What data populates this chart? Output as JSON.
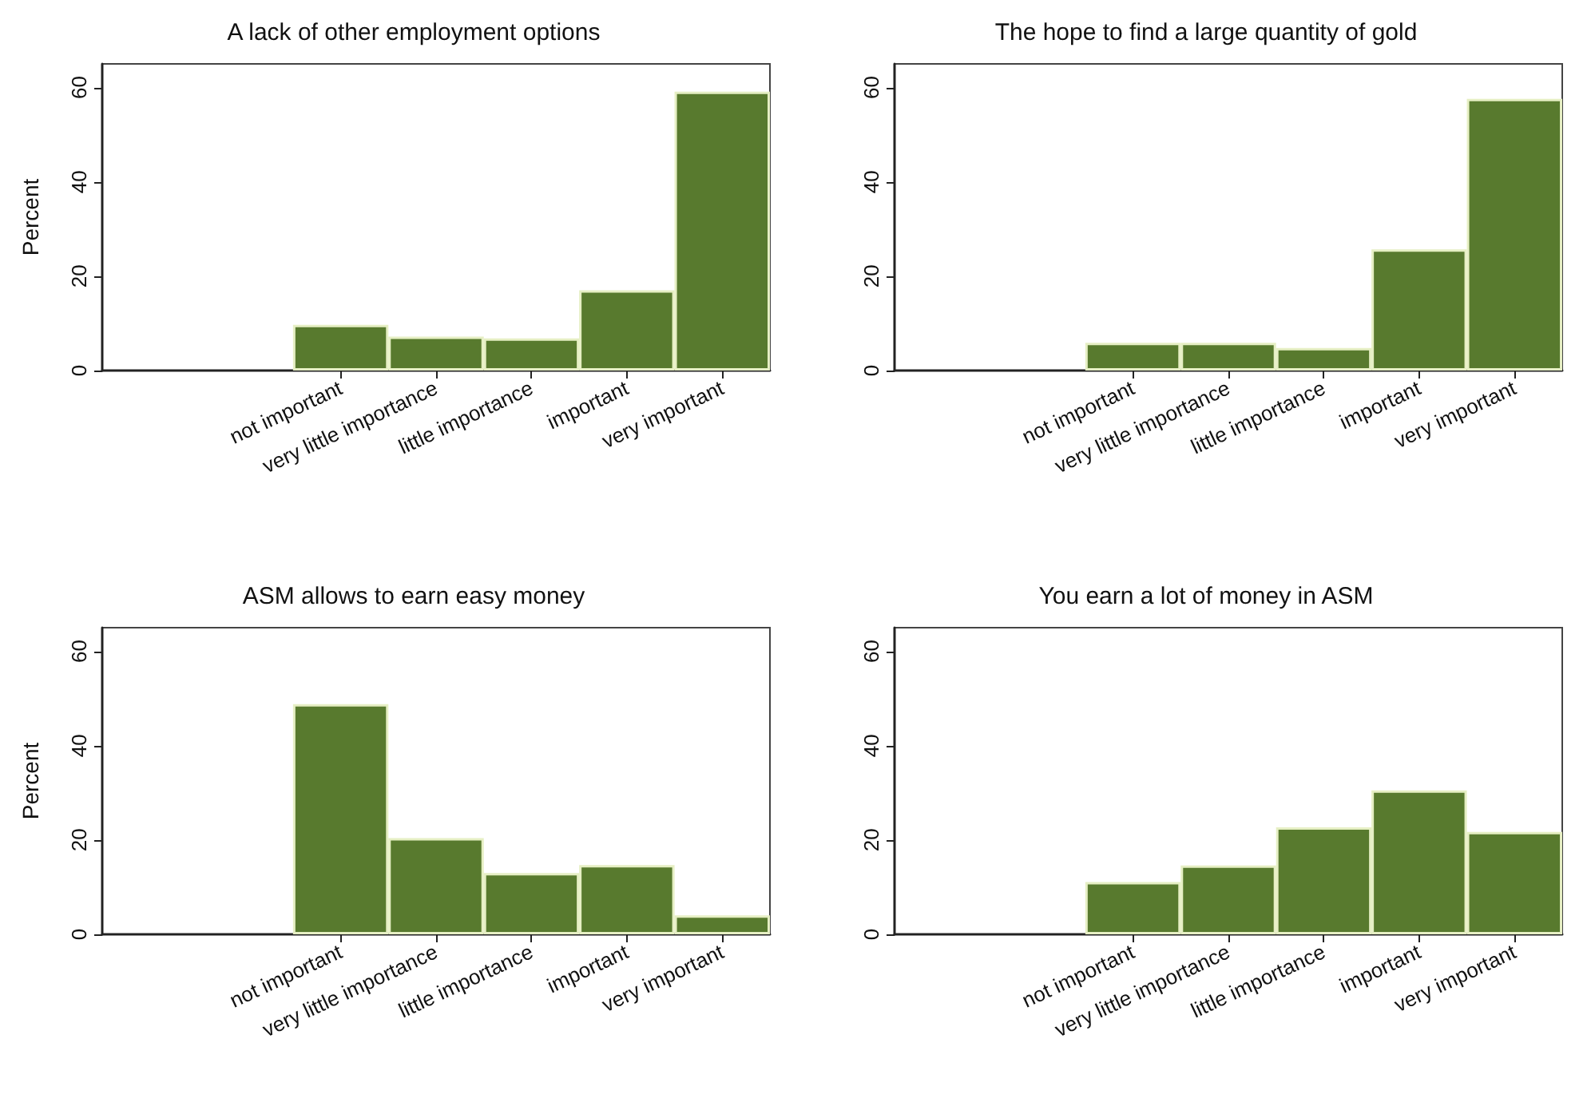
{
  "chart_data": [
    {
      "type": "bar",
      "title": "A lack of other employment options",
      "ylabel": "Percent",
      "categories": [
        null,
        null,
        "not important",
        "very little importance",
        "little importance",
        "important",
        "very important"
      ],
      "values": [
        null,
        null,
        9.7,
        7.2,
        6.8,
        17.0,
        59.1
      ],
      "color": "#587a2e",
      "ylim": [
        0,
        65
      ],
      "yticks": [
        0,
        20,
        40,
        60
      ]
    },
    {
      "type": "bar",
      "title": "The hope to find a large quantity of gold",
      "categories": [
        null,
        null,
        "not important",
        "very little importance",
        "little importance",
        "important",
        "very important"
      ],
      "values": [
        null,
        null,
        5.9,
        5.9,
        4.8,
        25.7,
        57.6
      ],
      "color": "#587a2e",
      "ylim": [
        0,
        65
      ],
      "yticks": [
        0,
        20,
        40,
        60
      ]
    },
    {
      "type": "bar",
      "title": "ASM allows to earn easy money",
      "ylabel": "Percent",
      "categories": [
        null,
        null,
        "not important",
        "very little importance",
        "little importance",
        "important",
        "very important"
      ],
      "values": [
        null,
        null,
        48.8,
        20.4,
        13.0,
        14.7,
        4.0
      ],
      "color": "#587a2e",
      "ylim": [
        0,
        65
      ],
      "yticks": [
        0,
        20,
        40,
        60
      ]
    },
    {
      "type": "bar",
      "title": "You earn a lot of money in ASM",
      "categories": [
        null,
        null,
        "not important",
        "very little importance",
        "little importance",
        "important",
        "very important"
      ],
      "values": [
        null,
        null,
        11.1,
        14.6,
        22.7,
        30.5,
        21.7
      ],
      "color": "#587a2e",
      "ylim": [
        0,
        65
      ],
      "yticks": [
        0,
        20,
        40,
        60
      ]
    }
  ]
}
